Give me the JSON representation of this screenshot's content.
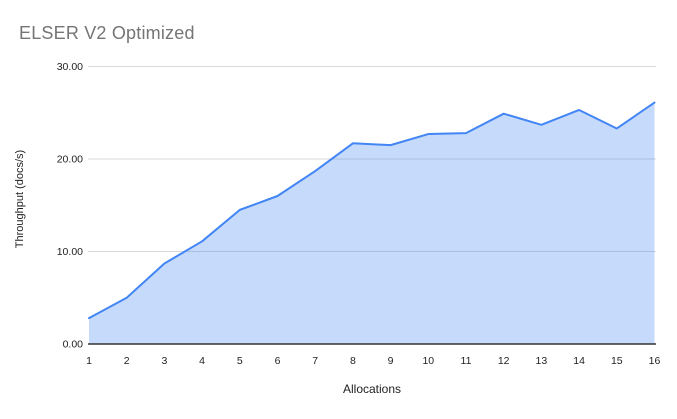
{
  "chart_data": {
    "type": "area",
    "title": "ELSER V2 Optimized",
    "xlabel": "Allocations",
    "ylabel": "Throughput (docs/s)",
    "categories": [
      "1",
      "2",
      "3",
      "4",
      "5",
      "6",
      "7",
      "8",
      "9",
      "10",
      "11",
      "12",
      "13",
      "14",
      "15",
      "16"
    ],
    "series": [
      {
        "name": "Throughput",
        "values": [
          2.8,
          5.0,
          8.7,
          11.1,
          14.5,
          16.0,
          18.7,
          21.7,
          21.5,
          22.7,
          22.8,
          24.9,
          23.7,
          25.3,
          23.3,
          26.1
        ]
      }
    ],
    "ylim": [
      0,
      30
    ],
    "yticks": [
      {
        "value": 0,
        "label": "0.00"
      },
      {
        "value": 10,
        "label": "10.00"
      },
      {
        "value": 20,
        "label": "20.00"
      },
      {
        "value": 30,
        "label": "30.00"
      }
    ],
    "grid": true,
    "legend": "none",
    "colors": {
      "line": "#4285f4",
      "fill": "rgba(66,133,244,0.3)",
      "gridline": "#d9d9d9",
      "axis_line": "#333333",
      "tick_label": "#1f1f1f",
      "axis_title": "#1f1f1f",
      "title": "#757575",
      "background": "#ffffff"
    }
  }
}
